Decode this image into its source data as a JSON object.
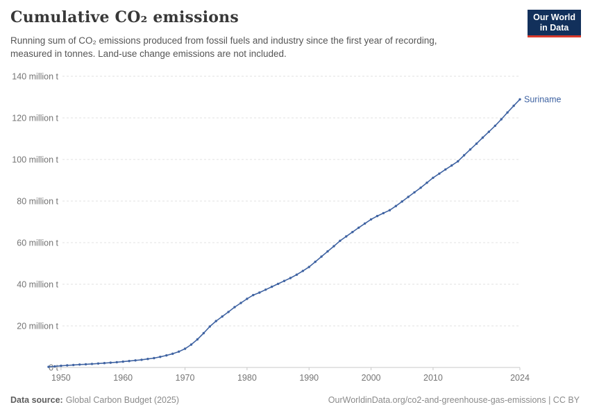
{
  "header": {
    "title": "Cumulative CO₂ emissions",
    "subtitle": "Running sum of CO₂ emissions produced from fossil fuels and industry since the first year of recording, measured in tonnes. Land-use change emissions are not included.",
    "logo": {
      "line1": "Our World",
      "line2": "in Data"
    }
  },
  "footer": {
    "source_label": "Data source:",
    "source_value": "Global Carbon Budget (2025)",
    "credit": "OurWorldinData.org/co2-and-greenhouse-gas-emissions | CC BY"
  },
  "colors": {
    "series_blue": "#3f63a2",
    "logo_navy": "#12305b",
    "logo_red": "#d93a2b",
    "grid": "#e2e2e2",
    "axis": "#c8c8c8",
    "tick_text": "#747474",
    "title_text": "#383838",
    "subtitle_text": "#555555"
  },
  "chart_data": {
    "type": "line",
    "title": "Cumulative CO₂ emissions",
    "entity_label": "Suriname",
    "unit": "million tonnes (cumulative)",
    "xlim": [
      1948,
      2024
    ],
    "ylim": [
      0,
      140
    ],
    "grid": "horizontal-dashed",
    "legend_position": "end-of-line",
    "x_ticks": [
      1950,
      1960,
      1970,
      1980,
      1990,
      2000,
      2010,
      2024
    ],
    "y_ticks": [
      {
        "value": 0,
        "label": "0 t"
      },
      {
        "value": 20,
        "label": "20 million t"
      },
      {
        "value": 40,
        "label": "40 million t"
      },
      {
        "value": 60,
        "label": "60 million t"
      },
      {
        "value": 80,
        "label": "80 million t"
      },
      {
        "value": 100,
        "label": "100 million t"
      },
      {
        "value": 120,
        "label": "120 million t"
      },
      {
        "value": 140,
        "label": "140 million t"
      }
    ],
    "series": [
      {
        "name": "Suriname",
        "color": "#3f63a2",
        "years": [
          1948,
          1949,
          1950,
          1951,
          1952,
          1953,
          1954,
          1955,
          1956,
          1957,
          1958,
          1959,
          1960,
          1961,
          1962,
          1963,
          1964,
          1965,
          1966,
          1967,
          1968,
          1969,
          1970,
          1971,
          1972,
          1973,
          1974,
          1975,
          1976,
          1977,
          1978,
          1979,
          1980,
          1981,
          1982,
          1983,
          1984,
          1985,
          1986,
          1987,
          1988,
          1989,
          1990,
          1991,
          1992,
          1993,
          1994,
          1995,
          1996,
          1997,
          1998,
          1999,
          2000,
          2001,
          2002,
          2003,
          2004,
          2005,
          2006,
          2007,
          2008,
          2009,
          2010,
          2011,
          2012,
          2013,
          2014,
          2015,
          2016,
          2017,
          2018,
          2019,
          2020,
          2021,
          2022,
          2023,
          2024
        ],
        "values": [
          0.3,
          0.55,
          0.8,
          1.0,
          1.2,
          1.4,
          1.55,
          1.7,
          1.9,
          2.1,
          2.3,
          2.55,
          2.8,
          3.1,
          3.4,
          3.7,
          4.1,
          4.5,
          5.1,
          5.8,
          6.6,
          7.6,
          9.0,
          11.0,
          13.5,
          16.5,
          19.7,
          22.3,
          24.5,
          26.7,
          29.0,
          31.0,
          33.0,
          34.8,
          36.0,
          37.4,
          38.8,
          40.2,
          41.6,
          43.0,
          44.6,
          46.4,
          48.3,
          50.8,
          53.3,
          55.8,
          58.3,
          60.9,
          63.0,
          65.1,
          67.2,
          69.2,
          71.2,
          72.8,
          74.2,
          75.6,
          77.6,
          79.8,
          82.0,
          84.2,
          86.4,
          88.8,
          91.2,
          93.2,
          95.2,
          97.1,
          99.1,
          102.0,
          104.8,
          107.6,
          110.5,
          113.3,
          116.2,
          119.3,
          122.6,
          125.8,
          128.9
        ]
      }
    ]
  }
}
